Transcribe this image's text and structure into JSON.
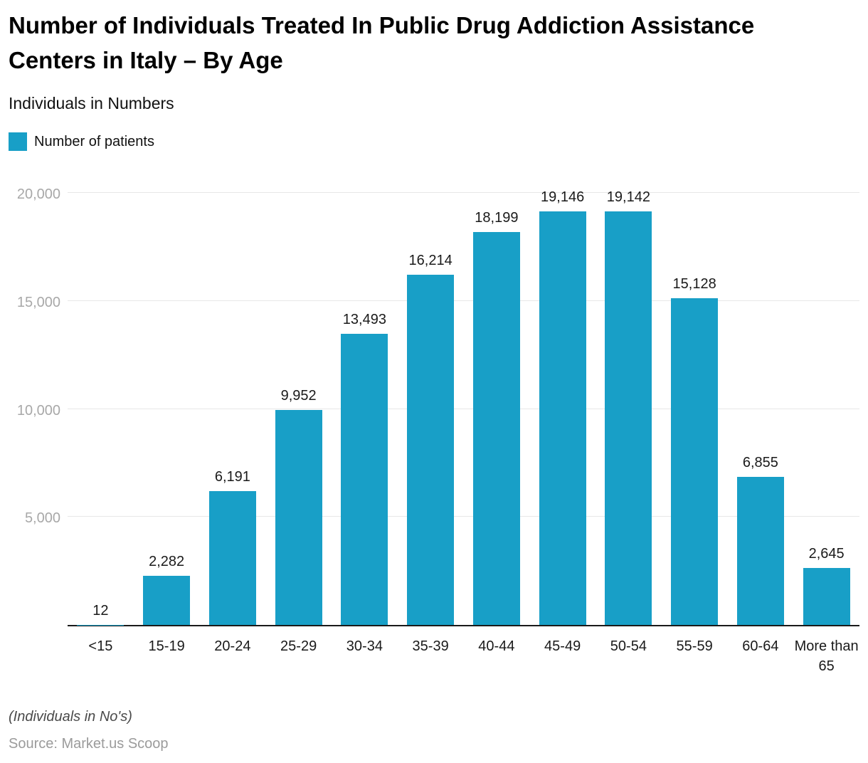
{
  "header": {
    "title": "Number of Individuals Treated In Public Drug Addiction Assistance Centers in Italy – By Age",
    "subtitle": "Individuals in Numbers"
  },
  "legend": {
    "label": "Number of patients"
  },
  "chart_data": {
    "type": "bar",
    "title": "Number of Individuals Treated In Public Drug Addiction Assistance Centers in Italy – By Age",
    "subtitle": "Individuals in Numbers",
    "categories": [
      "<15",
      "15-19",
      "20-24",
      "25-29",
      "30-34",
      "35-39",
      "40-44",
      "45-49",
      "50-54",
      "55-59",
      "60-64",
      "More than 65"
    ],
    "values": [
      12,
      2282,
      6191,
      9952,
      13493,
      16214,
      18199,
      19146,
      19142,
      15128,
      6855,
      2645
    ],
    "value_labels": [
      "12",
      "2,282",
      "6,191",
      "9,952",
      "13,493",
      "16,214",
      "18,199",
      "19,146",
      "19,142",
      "15,128",
      "6,855",
      "2,645"
    ],
    "series_name": "Number of patients",
    "xlabel": "",
    "ylabel": "Individuals in Numbers",
    "ylim": [
      0,
      20000
    ],
    "yticks": [
      5000,
      10000,
      15000,
      20000
    ],
    "ytick_labels": [
      "5,000",
      "10,000",
      "15,000",
      "20,000"
    ],
    "grid": true,
    "legend_position": "top-left",
    "bar_color": "#189fc7"
  },
  "colors": {
    "bar": "#189fc7",
    "gridline": "#e7e7e7",
    "axis_line": "#1a1a1a",
    "ytick_label": "#a8a8a8"
  },
  "footer": {
    "note": "(Individuals in No's)",
    "source": "Source: Market.us Scoop"
  }
}
